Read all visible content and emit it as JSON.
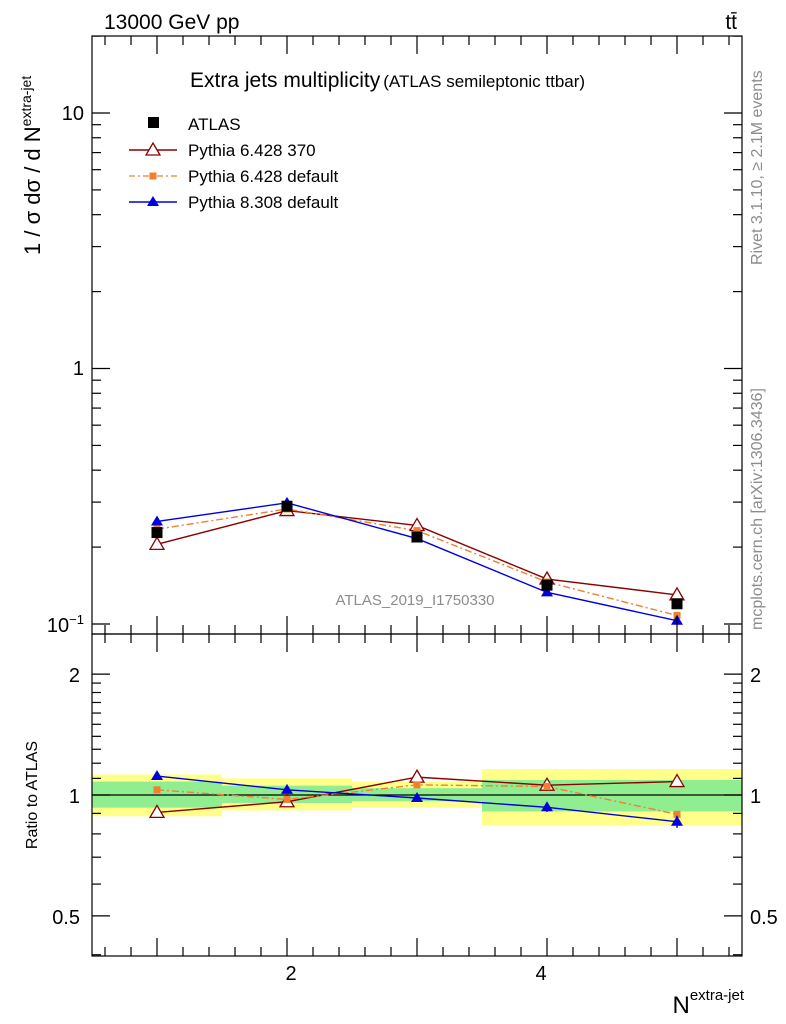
{
  "header": {
    "left": "13000 GeV pp",
    "right": "tt̄"
  },
  "side_labels": {
    "rivet": "Rivet 3.1.10, ≥ 2.1M events",
    "mcplots": "mcplots.cern.ch [arXiv:1306.3436]"
  },
  "chart_data": [
    {
      "type": "line",
      "title": "Extra jets multiplicity",
      "subtitle": "(ATLAS semileptonic ttbar)",
      "watermark": "ATLAS_2019_I1750330",
      "ylabel": "1 / σ dσ / d N",
      "ylabel_sup": "extra-jet",
      "yscale": "log",
      "xlim": [
        0.5,
        5.5
      ],
      "ylim": [
        0.1,
        20
      ],
      "ytick_labels": [
        "10",
        "1",
        "10"
      ],
      "ytick_sup": "−1",
      "legend_position": "top-left",
      "x": [
        1,
        2,
        3,
        4,
        5
      ],
      "series": [
        {
          "name": "ATLAS",
          "marker": "square",
          "color": "#000000",
          "values": [
            0.228,
            0.289,
            0.219,
            0.142,
            0.12
          ]
        },
        {
          "name": "Pythia 6.428 370",
          "marker": "triangle-open",
          "color": "#8b0000",
          "values": [
            0.205,
            0.278,
            0.243,
            0.15,
            0.13
          ]
        },
        {
          "name": "Pythia 6.428 default",
          "marker": "square-small",
          "color": "#f08030",
          "dashed": true,
          "values": [
            0.235,
            0.282,
            0.232,
            0.146,
            0.108
          ]
        },
        {
          "name": "Pythia 8.308 default",
          "marker": "triangle",
          "color": "#0000dd",
          "values": [
            0.252,
            0.298,
            0.216,
            0.133,
            0.103
          ]
        }
      ]
    },
    {
      "type": "line",
      "ylabel": "Ratio to ATLAS",
      "xlabel": "N",
      "xlabel_sup": "extra-jet",
      "yscale": "log",
      "xlim": [
        0.5,
        5.5
      ],
      "ylim": [
        0.4,
        2.5
      ],
      "ytick_labels": [
        "2",
        "1",
        "0.5"
      ],
      "xtick_labels": [
        "2",
        "4"
      ],
      "x": [
        1,
        2,
        3,
        4,
        5
      ],
      "bands": {
        "edges": [
          0.5,
          1.5,
          2.5,
          3.5,
          4.5,
          5.5
        ],
        "inner_color": "#90ee90",
        "outer_color": "#ffff8a",
        "inner": [
          [
            0.93,
            1.08
          ],
          [
            0.955,
            1.055
          ],
          [
            0.965,
            1.04
          ],
          [
            0.91,
            1.09
          ],
          [
            0.91,
            1.09
          ]
        ],
        "outer": [
          [
            0.885,
            1.125
          ],
          [
            0.915,
            1.1
          ],
          [
            0.93,
            1.08
          ],
          [
            0.84,
            1.16
          ],
          [
            0.84,
            1.16
          ]
        ]
      },
      "series": [
        {
          "name": "Pythia 6.428 370",
          "marker": "triangle-open",
          "color": "#8b0000",
          "values": [
            0.905,
            0.962,
            1.108,
            1.058,
            1.08
          ],
          "errors": [
            0,
            0,
            0,
            0,
            0
          ]
        },
        {
          "name": "Pythia 6.428 default",
          "marker": "square-small",
          "color": "#f08030",
          "dashed": true,
          "values": [
            1.03,
            0.975,
            1.06,
            1.05,
            0.895
          ],
          "errors": [
            0,
            0,
            0,
            0.02,
            0
          ]
        },
        {
          "name": "Pythia 8.308 default",
          "marker": "triangle",
          "color": "#0000dd",
          "values": [
            1.115,
            1.03,
            0.983,
            0.932,
            0.858
          ],
          "errors": [
            0.025,
            0,
            0,
            0.025,
            0.03
          ]
        }
      ]
    }
  ]
}
